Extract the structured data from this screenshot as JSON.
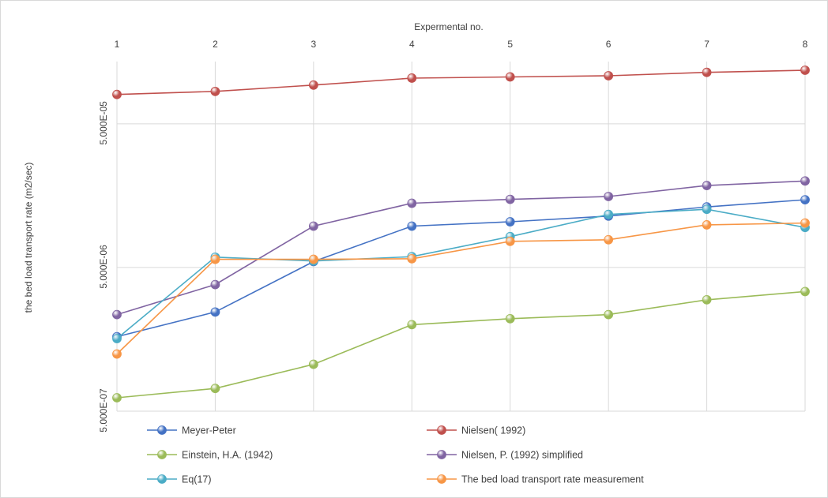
{
  "chart_data": {
    "type": "line",
    "title": "",
    "xlabel": "Expermental no.",
    "ylabel": "the bed load transport rate (m2/sec)",
    "y_scale": "log",
    "ylim": [
      5e-07,
      0.00015
    ],
    "yticks": [
      5e-07,
      5e-06,
      5e-05
    ],
    "ytick_labels": [
      "5.000E-07",
      "5.000E-06",
      "5.000E-05"
    ],
    "x": [
      1,
      2,
      3,
      4,
      5,
      6,
      7,
      8
    ],
    "xtick_labels": [
      "1",
      "2",
      "3",
      "4",
      "5",
      "6",
      "7",
      "8"
    ],
    "grid": true,
    "legend_position": "bottom",
    "series": [
      {
        "name": "Meyer-Peter",
        "color": "#4472c4",
        "values": [
          1.65e-06,
          2.45e-06,
          5.5e-06,
          9.7e-06,
          1.04e-05,
          1.14e-05,
          1.32e-05,
          1.48e-05
        ]
      },
      {
        "name": "Nielsen( 1992)",
        "color": "#c0504d",
        "values": [
          8e-05,
          8.4e-05,
          9.3e-05,
          0.000104,
          0.000106,
          0.000108,
          0.000114,
          0.000118
        ]
      },
      {
        "name": "Einstein, H.A. (1942)",
        "color": "#9bbb59",
        "values": [
          6.2e-07,
          7.2e-07,
          1.06e-06,
          2e-06,
          2.2e-06,
          2.35e-06,
          2.98e-06,
          3.4e-06
        ]
      },
      {
        "name": "Nielsen, P. (1992)  simplified",
        "color": "#8064a2",
        "values": [
          2.35e-06,
          3.8e-06,
          9.7e-06,
          1.4e-05,
          1.49e-05,
          1.56e-05,
          1.86e-05,
          2e-05
        ]
      },
      {
        "name": "Eq(17)",
        "color": "#4bacc6",
        "values": [
          1.6e-06,
          5.9e-06,
          5.55e-06,
          5.95e-06,
          8.2e-06,
          1.17e-05,
          1.27e-05,
          9.5e-06
        ]
      },
      {
        "name": "The bed load transport rate measurement",
        "color": "#f79646",
        "values": [
          1.25e-06,
          5.7e-06,
          5.7e-06,
          5.75e-06,
          7.6e-06,
          7.8e-06,
          9.9e-06,
          1.02e-05
        ]
      }
    ]
  }
}
